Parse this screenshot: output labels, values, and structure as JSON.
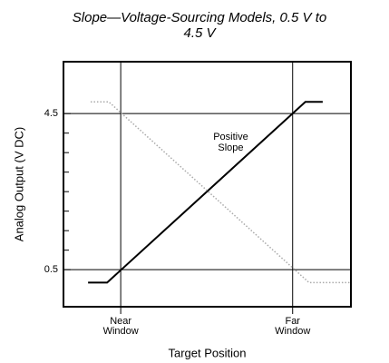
{
  "chart_data": {
    "type": "line",
    "title": [
      "Slope—Voltage-Sourcing Models, 0.5 V to",
      "4.5 V"
    ],
    "ylabel": "Analog Output (V DC)",
    "xlabel": "Target Position",
    "xlim": [
      -0.333,
      1.339
    ],
    "ylim": [
      -0.45,
      5.83
    ],
    "xticks": [
      {
        "value": 0,
        "label": [
          "Near",
          "Window"
        ]
      },
      {
        "value": 1,
        "label": [
          "Far",
          "Window"
        ]
      }
    ],
    "yticks": [
      0.5,
      4.5
    ],
    "yminor_ticks": [
      1,
      1.5,
      2,
      2.5,
      3,
      3.5,
      4
    ],
    "grid": true,
    "series": [
      {
        "color": "#000000",
        "style": "solid",
        "x": [
          -0.19,
          -0.079,
          1.074,
          1.175
        ],
        "values": [
          0.17,
          0.17,
          4.8,
          4.8
        ]
      },
      {
        "color": "#aaaaaa",
        "style": "dotted",
        "x": [
          -0.175,
          -0.069,
          1.095,
          1.333
        ],
        "values": [
          4.8,
          4.8,
          0.17,
          0.17
        ]
      }
    ],
    "annotations": [
      {
        "text": [
          "Positive",
          "Slope"
        ],
        "x": 0.64,
        "y": 3.9
      }
    ]
  }
}
